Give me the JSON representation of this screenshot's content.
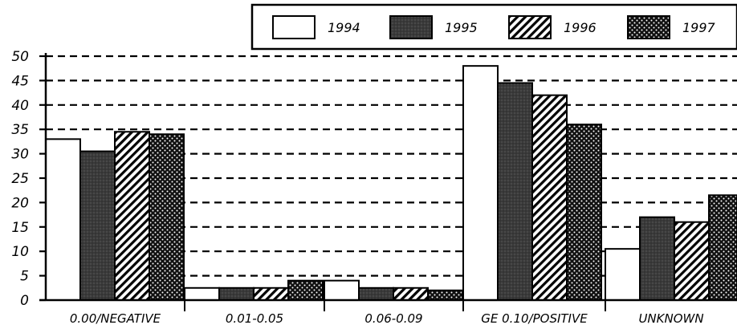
{
  "chart_data": {
    "type": "bar",
    "categories": [
      "0.00/NEGATIVE",
      "0.01-0.05",
      "0.06-0.09",
      "GE 0.10/POSITIVE",
      "UNKNOWN"
    ],
    "series": [
      {
        "name": "1994",
        "values": [
          33,
          2.5,
          4,
          48,
          10.5
        ],
        "fill": "white"
      },
      {
        "name": "1995",
        "values": [
          30.5,
          2.5,
          2.5,
          44.5,
          17
        ],
        "fill": "dark"
      },
      {
        "name": "1996",
        "values": [
          34.5,
          2.5,
          2.5,
          42,
          16
        ],
        "fill": "hatch"
      },
      {
        "name": "1997",
        "values": [
          34,
          4,
          2,
          36,
          21.5
        ],
        "fill": "dots"
      }
    ],
    "ylim": [
      0,
      50
    ],
    "yticks": [
      "0",
      "5",
      "10",
      "15",
      "20",
      "25",
      "30",
      "35",
      "40",
      "45",
      "50"
    ],
    "grid": true,
    "legend_position": "top-right",
    "colors": {
      "ink": "#000000",
      "dark": "#3a3a3a",
      "paper": "#ffffff"
    }
  }
}
